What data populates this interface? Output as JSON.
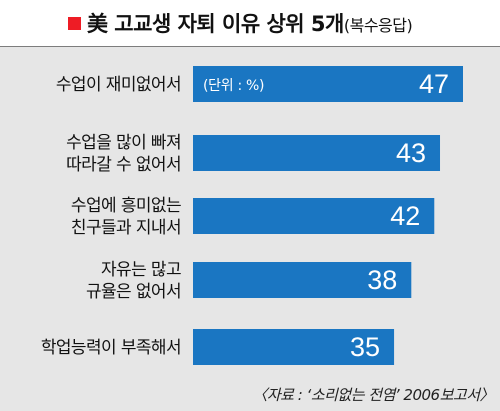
{
  "title": {
    "main": "美 고교생 자퇴 이유 상위 5개",
    "sub": "(복수응답)",
    "marker_color": "#ee1c25"
  },
  "unit_label": "(단위 : %)",
  "source": "〈자료 : ‘소리없는 전염’ 2006보고서〉",
  "chart_data": {
    "type": "bar",
    "orientation": "horizontal",
    "title": "美 고교생 자퇴 이유 상위 5개(복수응답)",
    "unit": "(단위 : %)",
    "categories": [
      [
        "수업이 재미없어서"
      ],
      [
        "수업을 많이 빠져",
        "따라갈 수 없어서"
      ],
      [
        "수업에 흥미없는",
        "친구들과 지내서"
      ],
      [
        "자유는 많고",
        "규율은 없어서"
      ],
      [
        "학업능력이 부족해서"
      ]
    ],
    "values": [
      47,
      43,
      42,
      38,
      35
    ],
    "bar_color": "#1a76c2",
    "xlim": [
      0,
      50
    ],
    "grid": false,
    "legend": "none"
  }
}
